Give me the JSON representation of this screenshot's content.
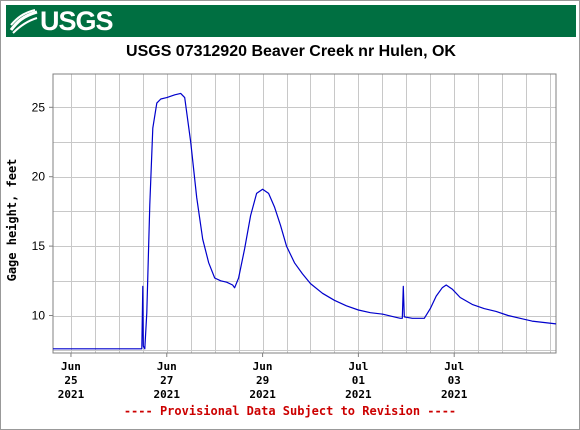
{
  "header": {
    "logo_text": "USGS",
    "banner_color": "#006f41"
  },
  "chart_data": {
    "type": "line",
    "title": "USGS 07312920 Beaver Creek nr Hulen, OK",
    "xlabel": "",
    "ylabel": "Gage height, feet",
    "x_is_date": true,
    "xlim": [
      "2021-06-24T15:00",
      "2021-07-05T03:00"
    ],
    "ylim": [
      7.3,
      27.4
    ],
    "grid": true,
    "line_color": "#0000cc",
    "yticks": [
      10,
      15,
      20,
      25
    ],
    "xticks": [
      {
        "date": "2021-06-25T00:00",
        "lines": [
          "Jun",
          "25",
          "2021"
        ]
      },
      {
        "date": "2021-06-27T00:00",
        "lines": [
          "Jun",
          "27",
          "2021"
        ]
      },
      {
        "date": "2021-06-29T00:00",
        "lines": [
          "Jun",
          "29",
          "2021"
        ]
      },
      {
        "date": "2021-07-01T00:00",
        "lines": [
          "Jul",
          "01",
          "2021"
        ]
      },
      {
        "date": "2021-07-03T00:00",
        "lines": [
          "Jul",
          "03",
          "2021"
        ]
      }
    ],
    "series": [
      {
        "points": [
          [
            "2021-06-24T15:00",
            7.6
          ],
          [
            "2021-06-26T11:00",
            7.6
          ],
          [
            "2021-06-26T11:30",
            7.6
          ],
          [
            "2021-06-26T12:00",
            12.1
          ],
          [
            "2021-06-26T12:15",
            7.8
          ],
          [
            "2021-06-26T13:00",
            7.6
          ],
          [
            "2021-06-26T14:00",
            10.2
          ],
          [
            "2021-06-26T15:30",
            18.0
          ],
          [
            "2021-06-26T17:00",
            23.5
          ],
          [
            "2021-06-26T19:00",
            25.3
          ],
          [
            "2021-06-26T21:00",
            25.6
          ],
          [
            "2021-06-27T00:00",
            25.7
          ],
          [
            "2021-06-27T04:00",
            25.9
          ],
          [
            "2021-06-27T07:00",
            26.0
          ],
          [
            "2021-06-27T09:00",
            25.7
          ],
          [
            "2021-06-27T12:00",
            22.5
          ],
          [
            "2021-06-27T15:00",
            18.5
          ],
          [
            "2021-06-27T18:00",
            15.5
          ],
          [
            "2021-06-27T21:00",
            13.8
          ],
          [
            "2021-06-28T00:00",
            12.7
          ],
          [
            "2021-06-28T03:00",
            12.5
          ],
          [
            "2021-06-28T06:00",
            12.4
          ],
          [
            "2021-06-28T09:00",
            12.2
          ],
          [
            "2021-06-28T10:00",
            12.0
          ],
          [
            "2021-06-28T12:00",
            12.7
          ],
          [
            "2021-06-28T15:00",
            14.8
          ],
          [
            "2021-06-28T18:00",
            17.2
          ],
          [
            "2021-06-28T21:00",
            18.8
          ],
          [
            "2021-06-29T00:00",
            19.1
          ],
          [
            "2021-06-29T03:00",
            18.8
          ],
          [
            "2021-06-29T06:00",
            17.8
          ],
          [
            "2021-06-29T09:00",
            16.5
          ],
          [
            "2021-06-29T12:00",
            15.0
          ],
          [
            "2021-06-29T16:00",
            13.8
          ],
          [
            "2021-06-29T20:00",
            13.0
          ],
          [
            "2021-06-30T00:00",
            12.3
          ],
          [
            "2021-06-30T06:00",
            11.6
          ],
          [
            "2021-06-30T12:00",
            11.1
          ],
          [
            "2021-06-30T18:00",
            10.7
          ],
          [
            "2021-07-01T00:00",
            10.4
          ],
          [
            "2021-07-01T06:00",
            10.2
          ],
          [
            "2021-07-01T12:00",
            10.1
          ],
          [
            "2021-07-01T18:00",
            9.9
          ],
          [
            "2021-07-01T21:00",
            9.8
          ],
          [
            "2021-07-01T22:00",
            9.8
          ],
          [
            "2021-07-01T22:30",
            12.1
          ],
          [
            "2021-07-01T23:00",
            9.9
          ],
          [
            "2021-07-02T03:00",
            9.8
          ],
          [
            "2021-07-02T09:00",
            9.8
          ],
          [
            "2021-07-02T12:00",
            10.5
          ],
          [
            "2021-07-02T15:00",
            11.4
          ],
          [
            "2021-07-02T18:00",
            12.0
          ],
          [
            "2021-07-02T20:00",
            12.2
          ],
          [
            "2021-07-02T23:00",
            11.9
          ],
          [
            "2021-07-03T03:00",
            11.3
          ],
          [
            "2021-07-03T09:00",
            10.8
          ],
          [
            "2021-07-03T15:00",
            10.5
          ],
          [
            "2021-07-03T21:00",
            10.3
          ],
          [
            "2021-07-04T03:00",
            10.0
          ],
          [
            "2021-07-04T09:00",
            9.8
          ],
          [
            "2021-07-04T15:00",
            9.6
          ],
          [
            "2021-07-04T21:00",
            9.5
          ],
          [
            "2021-07-05T03:00",
            9.4
          ]
        ]
      }
    ]
  },
  "footnote": "---- Provisional Data Subject to Revision ----",
  "footnote_color": "#cc0000"
}
